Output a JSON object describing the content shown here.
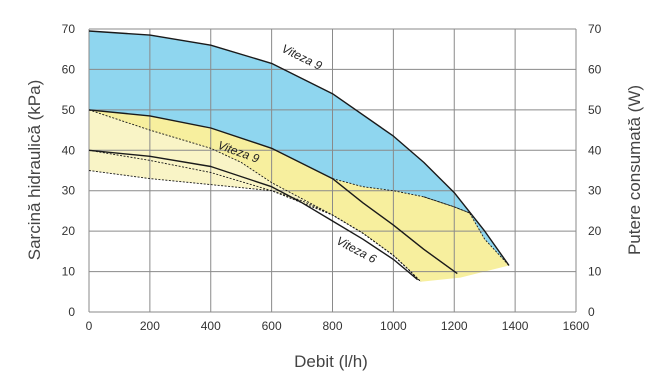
{
  "chart_data": {
    "type": "line",
    "xlabel": "Debit (l/h)",
    "ylabel": "Sarcină hidraulică (kPa)",
    "y2label": "Putere consumată (W)",
    "xlim": [
      0,
      1600
    ],
    "ylim": [
      0,
      70
    ],
    "y2lim": [
      0,
      70
    ],
    "grid": true,
    "x_ticks": [
      "0",
      "200",
      "400",
      "600",
      "800",
      "1000",
      "1200",
      "1400",
      "1600"
    ],
    "y_ticks": [
      "0",
      "10",
      "20",
      "30",
      "40",
      "50",
      "60",
      "70"
    ],
    "y2_ticks": [
      "0",
      "10",
      "20",
      "30",
      "40",
      "50",
      "60",
      "70"
    ],
    "colors": {
      "blue_band": "#8fd6ef",
      "yellow_band": "#f7ef9e",
      "pale_band": "#f9f4c6",
      "curve": "#1a1a1a",
      "grid": "#8a8a8a"
    },
    "regions": [
      {
        "color": "blue_band",
        "upper": [
          [
            0,
            69.5
          ],
          [
            200,
            68.5
          ],
          [
            400,
            66
          ],
          [
            600,
            61.5
          ],
          [
            800,
            54
          ],
          [
            1000,
            43.5
          ],
          [
            1100,
            37
          ],
          [
            1200,
            29.5
          ],
          [
            1300,
            20
          ],
          [
            1380,
            11.5
          ]
        ],
        "lower": [
          [
            0,
            50
          ],
          [
            200,
            48.5
          ],
          [
            400,
            45.5
          ],
          [
            600,
            40.5
          ],
          [
            800,
            33
          ],
          [
            900,
            31
          ],
          [
            1000,
            30
          ],
          [
            1100,
            28.5
          ],
          [
            1200,
            26
          ],
          [
            1250,
            24.5
          ],
          [
            1300,
            18
          ],
          [
            1380,
            11.5
          ]
        ]
      },
      {
        "color": "yellow_band",
        "upper": [
          [
            0,
            50
          ],
          [
            200,
            48.5
          ],
          [
            400,
            45.5
          ],
          [
            600,
            40.5
          ],
          [
            800,
            33
          ],
          [
            900,
            31
          ],
          [
            1000,
            30
          ],
          [
            1100,
            28.5
          ],
          [
            1200,
            26
          ],
          [
            1250,
            24.5
          ],
          [
            1300,
            18
          ],
          [
            1380,
            11.5
          ]
        ],
        "lower": [
          [
            0,
            40
          ],
          [
            200,
            37.5
          ],
          [
            400,
            34.5
          ],
          [
            600,
            30
          ],
          [
            700,
            27.5
          ],
          [
            800,
            24
          ],
          [
            900,
            19.5
          ],
          [
            1000,
            14
          ],
          [
            1050,
            10.5
          ],
          [
            1090,
            7.5
          ],
          [
            1220,
            8.5
          ],
          [
            1380,
            11.5
          ]
        ]
      },
      {
        "color": "pale_band",
        "upper": [
          [
            0,
            50
          ],
          [
            200,
            45
          ],
          [
            400,
            40.5
          ],
          [
            500,
            37
          ],
          [
            600,
            32
          ],
          [
            700,
            28
          ],
          [
            800,
            24
          ],
          [
            900,
            19.5
          ],
          [
            1000,
            14
          ],
          [
            1050,
            10.5
          ],
          [
            1090,
            7.5
          ]
        ],
        "lower": [
          [
            0,
            35
          ],
          [
            200,
            33
          ],
          [
            400,
            31.5
          ],
          [
            600,
            30
          ],
          [
            800,
            24
          ],
          [
            900,
            19.5
          ],
          [
            1000,
            14
          ],
          [
            1050,
            10.5
          ],
          [
            1090,
            7.5
          ]
        ]
      }
    ],
    "lines": [
      {
        "points": [
          [
            0,
            69.5
          ],
          [
            200,
            68.5
          ],
          [
            400,
            66
          ],
          [
            600,
            61.5
          ],
          [
            800,
            54
          ],
          [
            1000,
            43.5
          ],
          [
            1100,
            37
          ],
          [
            1200,
            29.5
          ],
          [
            1300,
            20
          ],
          [
            1380,
            11.5
          ]
        ],
        "style": "solid"
      },
      {
        "points": [
          [
            0,
            50
          ],
          [
            200,
            48.5
          ],
          [
            400,
            45.5
          ],
          [
            600,
            40.5
          ],
          [
            800,
            33
          ],
          [
            900,
            27
          ],
          [
            1000,
            21.5
          ],
          [
            1100,
            15.5
          ],
          [
            1210,
            9.5
          ]
        ],
        "style": "solid"
      },
      {
        "points": [
          [
            0,
            40
          ],
          [
            200,
            38.5
          ],
          [
            400,
            36
          ],
          [
            600,
            31
          ],
          [
            700,
            27
          ],
          [
            800,
            22.5
          ],
          [
            900,
            18
          ],
          [
            1000,
            13
          ],
          [
            1080,
            8
          ]
        ],
        "style": "solid"
      },
      {
        "points": [
          [
            0,
            50
          ],
          [
            200,
            45
          ],
          [
            400,
            40.5
          ],
          [
            500,
            37
          ],
          [
            600,
            32
          ],
          [
            700,
            28
          ],
          [
            800,
            24
          ],
          [
            900,
            19.5
          ],
          [
            1000,
            14
          ],
          [
            1050,
            10.5
          ],
          [
            1090,
            7.5
          ]
        ],
        "style": "dashed"
      },
      {
        "points": [
          [
            0,
            40
          ],
          [
            200,
            37.5
          ],
          [
            400,
            34.5
          ],
          [
            600,
            30
          ],
          [
            700,
            27.5
          ],
          [
            800,
            24
          ],
          [
            900,
            19.5
          ],
          [
            1000,
            14
          ],
          [
            1050,
            10.5
          ],
          [
            1090,
            7.5
          ]
        ],
        "style": "dashed"
      },
      {
        "points": [
          [
            0,
            35
          ],
          [
            200,
            33
          ],
          [
            400,
            31.5
          ],
          [
            600,
            30
          ],
          [
            800,
            24
          ],
          [
            900,
            19.5
          ],
          [
            1000,
            14
          ],
          [
            1050,
            10.5
          ],
          [
            1090,
            7.5
          ]
        ],
        "style": "dashed"
      },
      {
        "points": [
          [
            800,
            33
          ],
          [
            900,
            31
          ],
          [
            1000,
            30
          ],
          [
            1100,
            28.5
          ],
          [
            1200,
            26
          ],
          [
            1250,
            24.5
          ]
        ],
        "style": "dashed"
      },
      {
        "points": [
          [
            1100,
            28.5
          ],
          [
            1200,
            26
          ],
          [
            1250,
            24.5
          ],
          [
            1300,
            18
          ],
          [
            1380,
            11.5
          ]
        ],
        "style": "dashed"
      },
      {
        "points": [
          [
            1000,
            21.5
          ],
          [
            1100,
            15.5
          ],
          [
            1210,
            9.5
          ]
        ],
        "style": "dashed"
      }
    ],
    "annotations": [
      {
        "text": "Viteza 9",
        "x": 630,
        "y": 64.5,
        "rotate": 26
      },
      {
        "text": "Viteza 9",
        "x": 420,
        "y": 40.5,
        "rotate": 20
      },
      {
        "text": "Viteza 6",
        "x": 810,
        "y": 17,
        "rotate": 28
      }
    ]
  }
}
